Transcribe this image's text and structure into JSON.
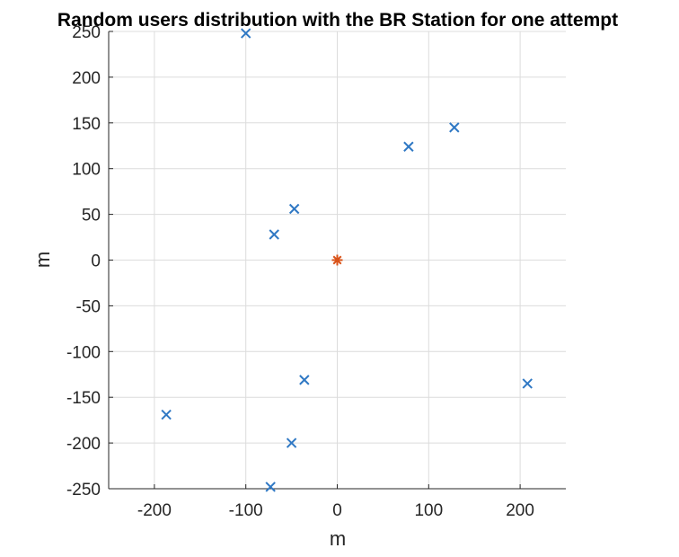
{
  "chart_data": {
    "type": "scatter",
    "title": "Random users distribution with the BR Station for one attempt",
    "xlabel": "m",
    "ylabel": "m",
    "xlim": [
      -250,
      250
    ],
    "ylim": [
      -250,
      250
    ],
    "xticks": [
      -200,
      -100,
      0,
      100,
      200
    ],
    "yticks": [
      -250,
      -200,
      -150,
      -100,
      -50,
      0,
      50,
      100,
      150,
      200,
      250
    ],
    "xtick_labels": [
      "-200",
      "-100",
      "0",
      "100",
      "200"
    ],
    "ytick_labels": [
      "-250",
      "-200",
      "-150",
      "-100",
      "-50",
      "0",
      "50",
      "100",
      "150",
      "200",
      "250"
    ],
    "grid": true,
    "legend": false,
    "series": [
      {
        "marker": "x",
        "color": "#2f78c4",
        "points": [
          {
            "x": -100,
            "y": 248
          },
          {
            "x": 128,
            "y": 145
          },
          {
            "x": 78,
            "y": 124
          },
          {
            "x": -47,
            "y": 56
          },
          {
            "x": -69,
            "y": 28
          },
          {
            "x": -36,
            "y": -131
          },
          {
            "x": 208,
            "y": -135
          },
          {
            "x": -187,
            "y": -169
          },
          {
            "x": -50,
            "y": -200
          },
          {
            "x": -73,
            "y": -248
          }
        ]
      },
      {
        "marker": "asterisk",
        "color": "#d95319",
        "points": [
          {
            "x": 0,
            "y": 0
          }
        ]
      }
    ]
  }
}
